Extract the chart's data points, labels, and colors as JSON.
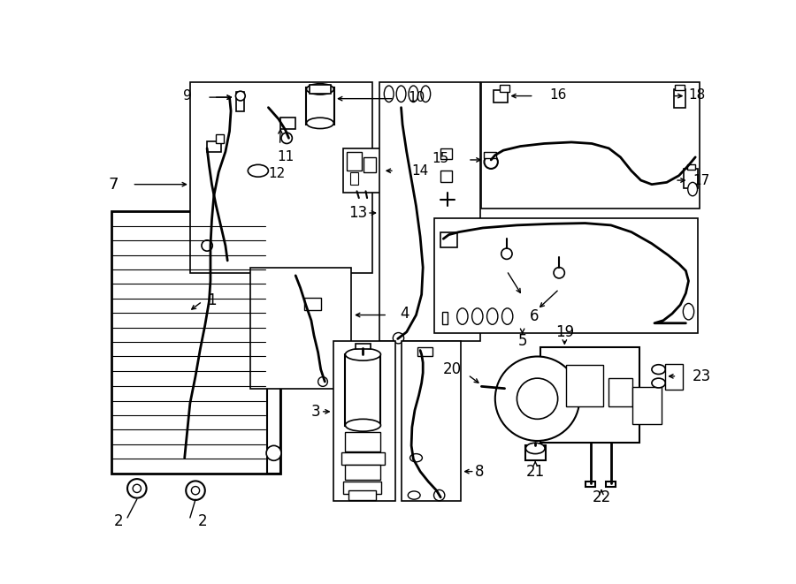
{
  "bg_color": "#ffffff",
  "lc": "#000000",
  "fig_w": 9.0,
  "fig_h": 6.61,
  "dpi": 100,
  "xlim": [
    0,
    900
  ],
  "ylim": [
    0,
    661
  ]
}
